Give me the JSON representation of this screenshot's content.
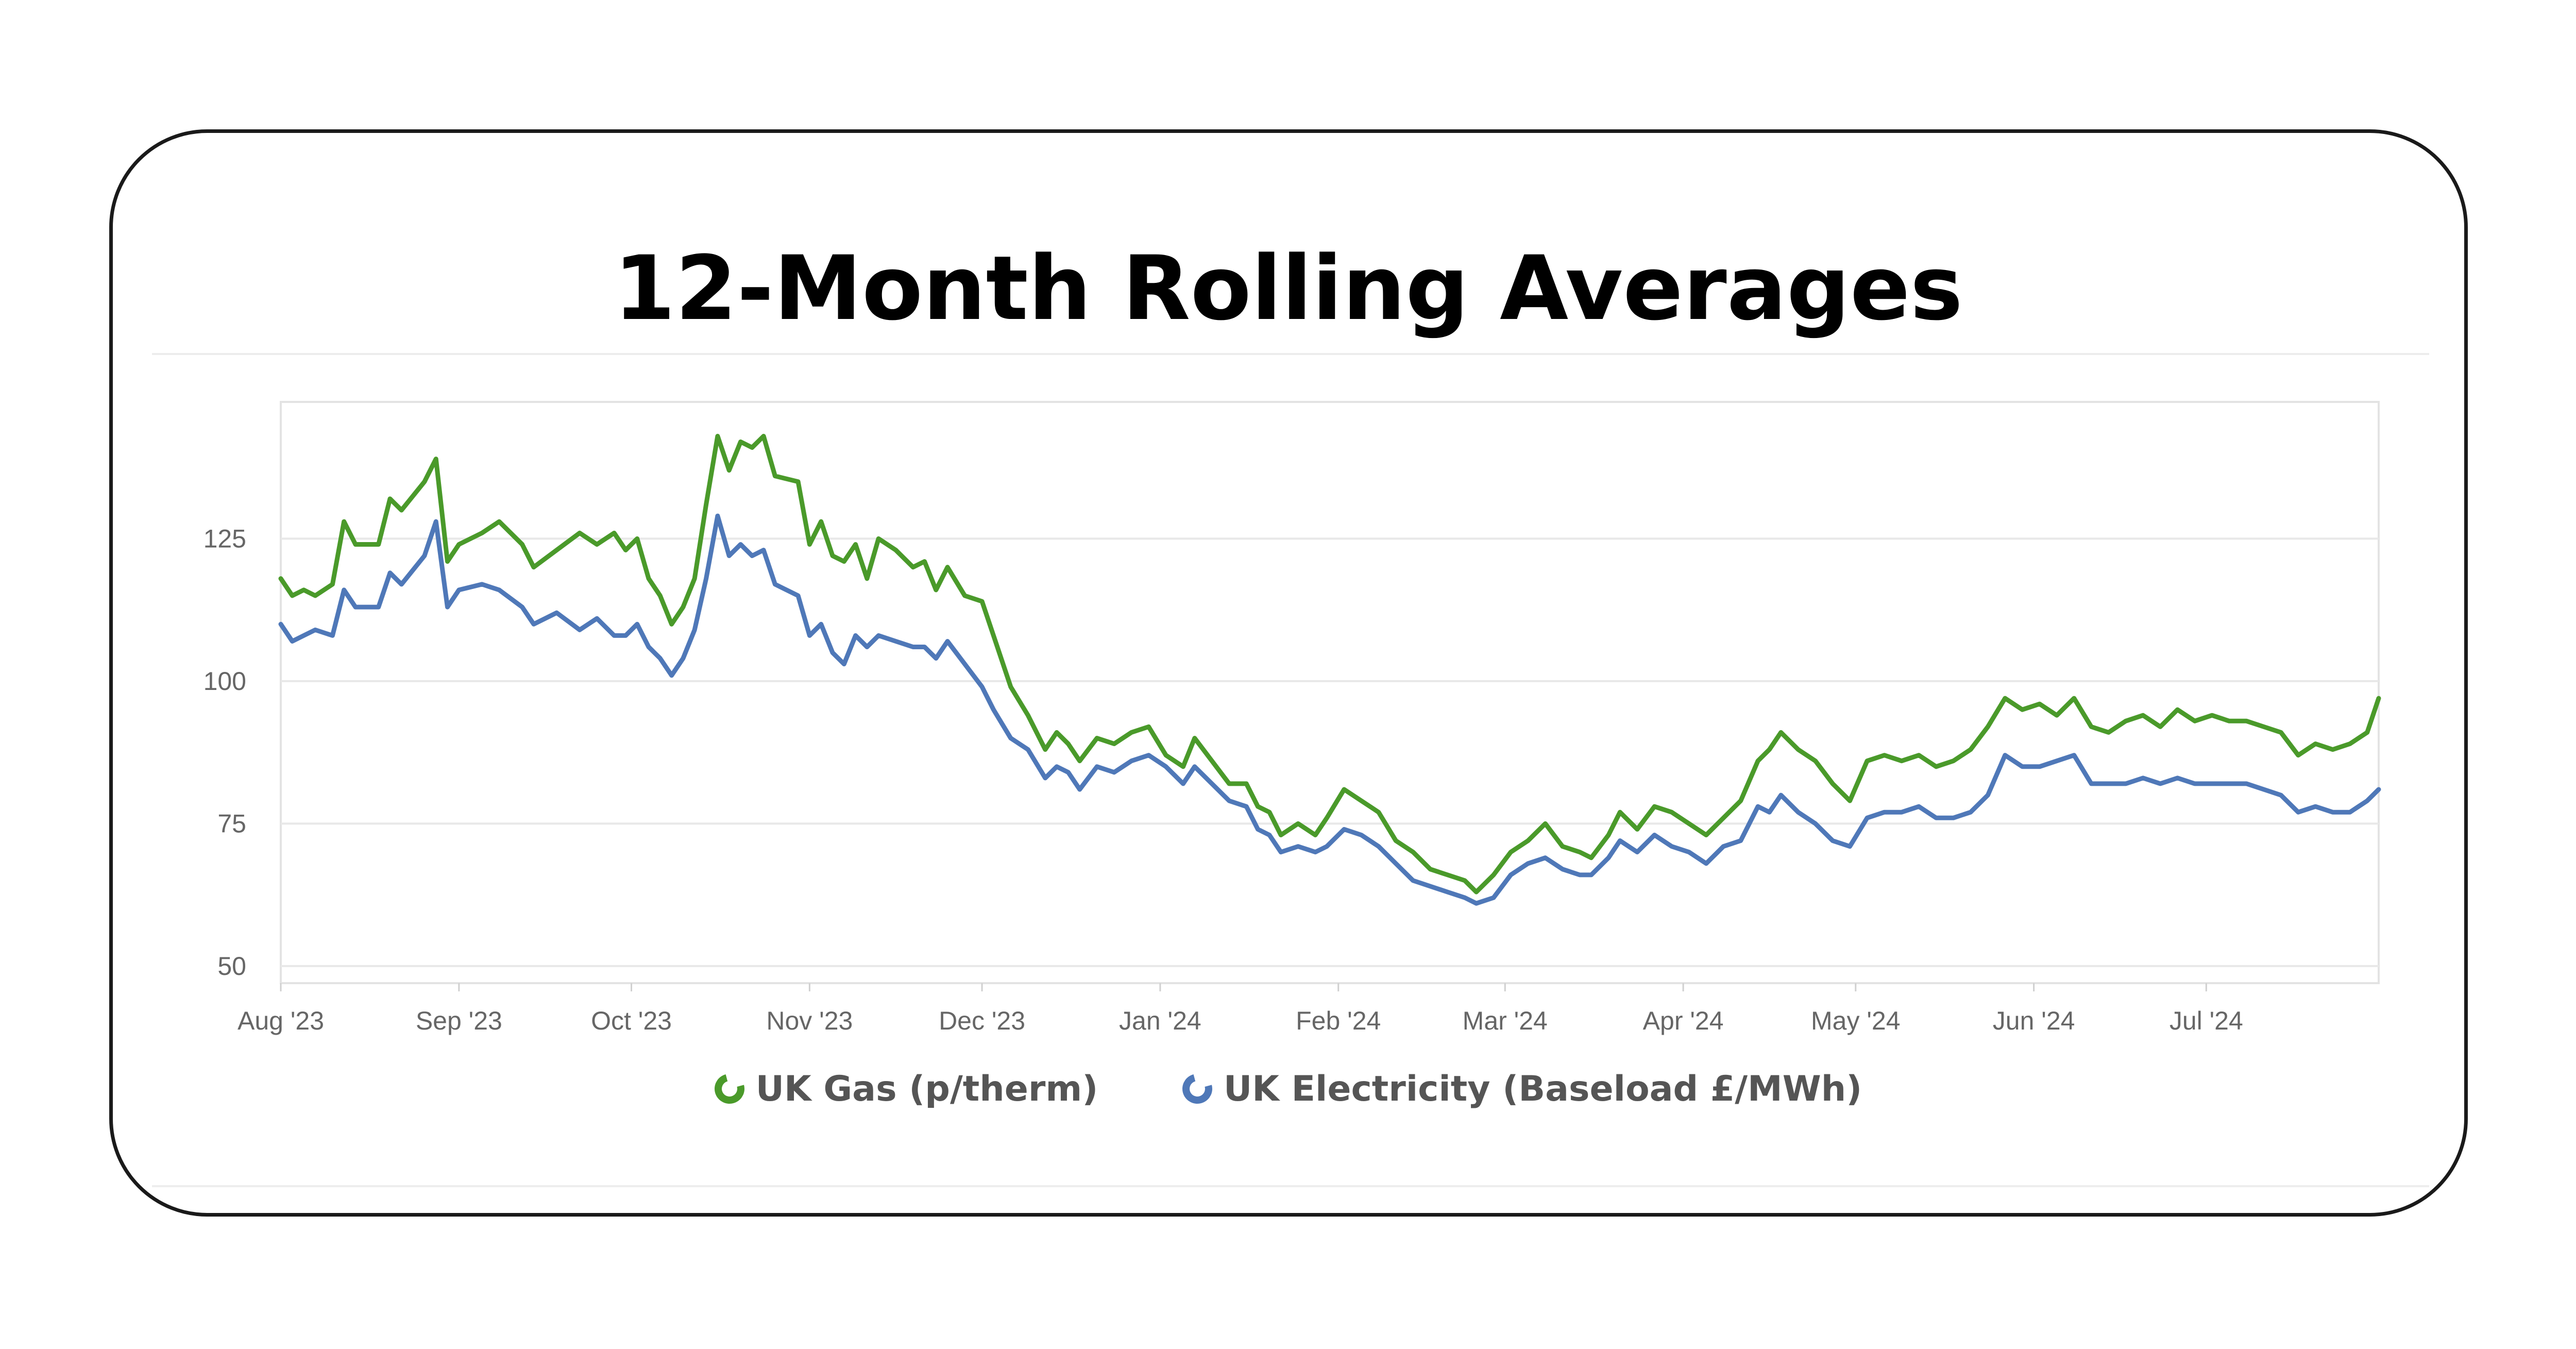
{
  "title": "12-Month Rolling Averages",
  "chart_data": {
    "type": "line",
    "title": "12-Month Rolling Averages",
    "xlabel": "",
    "ylabel": "",
    "ylim": [
      47,
      149
    ],
    "xlim": [
      "2023-08-01",
      "2024-07-31"
    ],
    "y_ticks": [
      "125",
      "100",
      "75",
      "50"
    ],
    "y_tick_values": [
      125,
      100,
      75,
      50
    ],
    "x_tick_labels": [
      "Aug '23",
      "Sep '23",
      "Oct '23",
      "Nov '23",
      "Dec '23",
      "Jan '24",
      "Feb '24",
      "Mar '24",
      "Apr '24",
      "May '24",
      "Jun '24",
      "Jul '24"
    ],
    "x_tick_dates": [
      "2023-08-01",
      "2023-09-01",
      "2023-10-01",
      "2023-11-01",
      "2023-12-01",
      "2024-01-01",
      "2024-02-01",
      "2024-03-01",
      "2024-04-01",
      "2024-05-01",
      "2024-06-01",
      "2024-07-01"
    ],
    "grid": "horizontal",
    "legend_position": "bottom",
    "series": [
      {
        "name": "UK Gas (p/therm)",
        "color": "#4a9a2a",
        "points": [
          [
            "2023-08-01",
            118
          ],
          [
            "2023-08-03",
            115
          ],
          [
            "2023-08-05",
            116
          ],
          [
            "2023-08-07",
            115
          ],
          [
            "2023-08-10",
            117
          ],
          [
            "2023-08-12",
            128
          ],
          [
            "2023-08-14",
            124
          ],
          [
            "2023-08-18",
            124
          ],
          [
            "2023-08-20",
            132
          ],
          [
            "2023-08-22",
            130
          ],
          [
            "2023-08-26",
            135
          ],
          [
            "2023-08-28",
            139
          ],
          [
            "2023-08-30",
            121
          ],
          [
            "2023-09-01",
            124
          ],
          [
            "2023-09-05",
            126
          ],
          [
            "2023-09-08",
            128
          ],
          [
            "2023-09-12",
            124
          ],
          [
            "2023-09-14",
            120
          ],
          [
            "2023-09-18",
            123
          ],
          [
            "2023-09-22",
            126
          ],
          [
            "2023-09-25",
            124
          ],
          [
            "2023-09-28",
            126
          ],
          [
            "2023-09-30",
            123
          ],
          [
            "2023-10-02",
            125
          ],
          [
            "2023-10-04",
            118
          ],
          [
            "2023-10-06",
            115
          ],
          [
            "2023-10-08",
            110
          ],
          [
            "2023-10-10",
            113
          ],
          [
            "2023-10-12",
            118
          ],
          [
            "2023-10-14",
            131
          ],
          [
            "2023-10-16",
            143
          ],
          [
            "2023-10-18",
            137
          ],
          [
            "2023-10-20",
            142
          ],
          [
            "2023-10-22",
            141
          ],
          [
            "2023-10-24",
            143
          ],
          [
            "2023-10-26",
            136
          ],
          [
            "2023-10-30",
            135
          ],
          [
            "2023-11-01",
            124
          ],
          [
            "2023-11-03",
            128
          ],
          [
            "2023-11-05",
            122
          ],
          [
            "2023-11-07",
            121
          ],
          [
            "2023-11-09",
            124
          ],
          [
            "2023-11-11",
            118
          ],
          [
            "2023-11-13",
            125
          ],
          [
            "2023-11-16",
            123
          ],
          [
            "2023-11-19",
            120
          ],
          [
            "2023-11-21",
            121
          ],
          [
            "2023-11-23",
            116
          ],
          [
            "2023-11-25",
            120
          ],
          [
            "2023-11-28",
            115
          ],
          [
            "2023-12-01",
            114
          ],
          [
            "2023-12-03",
            108
          ],
          [
            "2023-12-06",
            99
          ],
          [
            "2023-12-09",
            94
          ],
          [
            "2023-12-12",
            88
          ],
          [
            "2023-12-14",
            91
          ],
          [
            "2023-12-16",
            89
          ],
          [
            "2023-12-18",
            86
          ],
          [
            "2023-12-21",
            90
          ],
          [
            "2023-12-24",
            89
          ],
          [
            "2023-12-27",
            91
          ],
          [
            "2023-12-30",
            92
          ],
          [
            "2024-01-02",
            87
          ],
          [
            "2024-01-05",
            85
          ],
          [
            "2024-01-07",
            90
          ],
          [
            "2024-01-10",
            86
          ],
          [
            "2024-01-13",
            82
          ],
          [
            "2024-01-16",
            82
          ],
          [
            "2024-01-18",
            78
          ],
          [
            "2024-01-20",
            77
          ],
          [
            "2024-01-22",
            73
          ],
          [
            "2024-01-25",
            75
          ],
          [
            "2024-01-28",
            73
          ],
          [
            "2024-01-30",
            76
          ],
          [
            "2024-02-02",
            81
          ],
          [
            "2024-02-05",
            79
          ],
          [
            "2024-02-08",
            77
          ],
          [
            "2024-02-11",
            72
          ],
          [
            "2024-02-14",
            70
          ],
          [
            "2024-02-17",
            67
          ],
          [
            "2024-02-20",
            66
          ],
          [
            "2024-02-23",
            65
          ],
          [
            "2024-02-25",
            63
          ],
          [
            "2024-02-28",
            66
          ],
          [
            "2024-03-02",
            70
          ],
          [
            "2024-03-05",
            72
          ],
          [
            "2024-03-08",
            75
          ],
          [
            "2024-03-11",
            71
          ],
          [
            "2024-03-14",
            70
          ],
          [
            "2024-03-16",
            69
          ],
          [
            "2024-03-19",
            73
          ],
          [
            "2024-03-21",
            77
          ],
          [
            "2024-03-24",
            74
          ],
          [
            "2024-03-27",
            78
          ],
          [
            "2024-03-30",
            77
          ],
          [
            "2024-04-02",
            75
          ],
          [
            "2024-04-05",
            73
          ],
          [
            "2024-04-08",
            76
          ],
          [
            "2024-04-11",
            79
          ],
          [
            "2024-04-14",
            86
          ],
          [
            "2024-04-16",
            88
          ],
          [
            "2024-04-18",
            91
          ],
          [
            "2024-04-21",
            88
          ],
          [
            "2024-04-24",
            86
          ],
          [
            "2024-04-27",
            82
          ],
          [
            "2024-04-30",
            79
          ],
          [
            "2024-05-03",
            86
          ],
          [
            "2024-05-06",
            87
          ],
          [
            "2024-05-09",
            86
          ],
          [
            "2024-05-12",
            87
          ],
          [
            "2024-05-15",
            85
          ],
          [
            "2024-05-18",
            86
          ],
          [
            "2024-05-21",
            88
          ],
          [
            "2024-05-24",
            92
          ],
          [
            "2024-05-27",
            97
          ],
          [
            "2024-05-30",
            95
          ],
          [
            "2024-06-02",
            96
          ],
          [
            "2024-06-05",
            94
          ],
          [
            "2024-06-08",
            97
          ],
          [
            "2024-06-11",
            92
          ],
          [
            "2024-06-14",
            91
          ],
          [
            "2024-06-17",
            93
          ],
          [
            "2024-06-20",
            94
          ],
          [
            "2024-06-23",
            92
          ],
          [
            "2024-06-26",
            95
          ],
          [
            "2024-06-29",
            93
          ],
          [
            "2024-07-02",
            94
          ],
          [
            "2024-07-05",
            93
          ],
          [
            "2024-07-08",
            93
          ],
          [
            "2024-07-11",
            92
          ],
          [
            "2024-07-14",
            91
          ],
          [
            "2024-07-17",
            87
          ],
          [
            "2024-07-20",
            89
          ],
          [
            "2024-07-23",
            88
          ],
          [
            "2024-07-26",
            89
          ],
          [
            "2024-07-29",
            91
          ],
          [
            "2024-07-31",
            97
          ]
        ]
      },
      {
        "name": "UK Electricity (Baseload £/MWh)",
        "color": "#4f78b8",
        "points": [
          [
            "2023-08-01",
            110
          ],
          [
            "2023-08-03",
            107
          ],
          [
            "2023-08-05",
            108
          ],
          [
            "2023-08-07",
            109
          ],
          [
            "2023-08-10",
            108
          ],
          [
            "2023-08-12",
            116
          ],
          [
            "2023-08-14",
            113
          ],
          [
            "2023-08-18",
            113
          ],
          [
            "2023-08-20",
            119
          ],
          [
            "2023-08-22",
            117
          ],
          [
            "2023-08-26",
            122
          ],
          [
            "2023-08-28",
            128
          ],
          [
            "2023-08-30",
            113
          ],
          [
            "2023-09-01",
            116
          ],
          [
            "2023-09-05",
            117
          ],
          [
            "2023-09-08",
            116
          ],
          [
            "2023-09-12",
            113
          ],
          [
            "2023-09-14",
            110
          ],
          [
            "2023-09-18",
            112
          ],
          [
            "2023-09-22",
            109
          ],
          [
            "2023-09-25",
            111
          ],
          [
            "2023-09-28",
            108
          ],
          [
            "2023-09-30",
            108
          ],
          [
            "2023-10-02",
            110
          ],
          [
            "2023-10-04",
            106
          ],
          [
            "2023-10-06",
            104
          ],
          [
            "2023-10-08",
            101
          ],
          [
            "2023-10-10",
            104
          ],
          [
            "2023-10-12",
            109
          ],
          [
            "2023-10-14",
            118
          ],
          [
            "2023-10-16",
            129
          ],
          [
            "2023-10-18",
            122
          ],
          [
            "2023-10-20",
            124
          ],
          [
            "2023-10-22",
            122
          ],
          [
            "2023-10-24",
            123
          ],
          [
            "2023-10-26",
            117
          ],
          [
            "2023-10-30",
            115
          ],
          [
            "2023-11-01",
            108
          ],
          [
            "2023-11-03",
            110
          ],
          [
            "2023-11-05",
            105
          ],
          [
            "2023-11-07",
            103
          ],
          [
            "2023-11-09",
            108
          ],
          [
            "2023-11-11",
            106
          ],
          [
            "2023-11-13",
            108
          ],
          [
            "2023-11-16",
            107
          ],
          [
            "2023-11-19",
            106
          ],
          [
            "2023-11-21",
            106
          ],
          [
            "2023-11-23",
            104
          ],
          [
            "2023-11-25",
            107
          ],
          [
            "2023-11-28",
            103
          ],
          [
            "2023-12-01",
            99
          ],
          [
            "2023-12-03",
            95
          ],
          [
            "2023-12-06",
            90
          ],
          [
            "2023-12-09",
            88
          ],
          [
            "2023-12-12",
            83
          ],
          [
            "2023-12-14",
            85
          ],
          [
            "2023-12-16",
            84
          ],
          [
            "2023-12-18",
            81
          ],
          [
            "2023-12-21",
            85
          ],
          [
            "2023-12-24",
            84
          ],
          [
            "2023-12-27",
            86
          ],
          [
            "2023-12-30",
            87
          ],
          [
            "2024-01-02",
            85
          ],
          [
            "2024-01-05",
            82
          ],
          [
            "2024-01-07",
            85
          ],
          [
            "2024-01-10",
            82
          ],
          [
            "2024-01-13",
            79
          ],
          [
            "2024-01-16",
            78
          ],
          [
            "2024-01-18",
            74
          ],
          [
            "2024-01-20",
            73
          ],
          [
            "2024-01-22",
            70
          ],
          [
            "2024-01-25",
            71
          ],
          [
            "2024-01-28",
            70
          ],
          [
            "2024-01-30",
            71
          ],
          [
            "2024-02-02",
            74
          ],
          [
            "2024-02-05",
            73
          ],
          [
            "2024-02-08",
            71
          ],
          [
            "2024-02-11",
            68
          ],
          [
            "2024-02-14",
            65
          ],
          [
            "2024-02-17",
            64
          ],
          [
            "2024-02-20",
            63
          ],
          [
            "2024-02-23",
            62
          ],
          [
            "2024-02-25",
            61
          ],
          [
            "2024-02-28",
            62
          ],
          [
            "2024-03-02",
            66
          ],
          [
            "2024-03-05",
            68
          ],
          [
            "2024-03-08",
            69
          ],
          [
            "2024-03-11",
            67
          ],
          [
            "2024-03-14",
            66
          ],
          [
            "2024-03-16",
            66
          ],
          [
            "2024-03-19",
            69
          ],
          [
            "2024-03-21",
            72
          ],
          [
            "2024-03-24",
            70
          ],
          [
            "2024-03-27",
            73
          ],
          [
            "2024-03-30",
            71
          ],
          [
            "2024-04-02",
            70
          ],
          [
            "2024-04-05",
            68
          ],
          [
            "2024-04-08",
            71
          ],
          [
            "2024-04-11",
            72
          ],
          [
            "2024-04-14",
            78
          ],
          [
            "2024-04-16",
            77
          ],
          [
            "2024-04-18",
            80
          ],
          [
            "2024-04-21",
            77
          ],
          [
            "2024-04-24",
            75
          ],
          [
            "2024-04-27",
            72
          ],
          [
            "2024-04-30",
            71
          ],
          [
            "2024-05-03",
            76
          ],
          [
            "2024-05-06",
            77
          ],
          [
            "2024-05-09",
            77
          ],
          [
            "2024-05-12",
            78
          ],
          [
            "2024-05-15",
            76
          ],
          [
            "2024-05-18",
            76
          ],
          [
            "2024-05-21",
            77
          ],
          [
            "2024-05-24",
            80
          ],
          [
            "2024-05-27",
            87
          ],
          [
            "2024-05-30",
            85
          ],
          [
            "2024-06-02",
            85
          ],
          [
            "2024-06-05",
            86
          ],
          [
            "2024-06-08",
            87
          ],
          [
            "2024-06-11",
            82
          ],
          [
            "2024-06-14",
            82
          ],
          [
            "2024-06-17",
            82
          ],
          [
            "2024-06-20",
            83
          ],
          [
            "2024-06-23",
            82
          ],
          [
            "2024-06-26",
            83
          ],
          [
            "2024-06-29",
            82
          ],
          [
            "2024-07-02",
            82
          ],
          [
            "2024-07-05",
            82
          ],
          [
            "2024-07-08",
            82
          ],
          [
            "2024-07-11",
            81
          ],
          [
            "2024-07-14",
            80
          ],
          [
            "2024-07-17",
            77
          ],
          [
            "2024-07-20",
            78
          ],
          [
            "2024-07-23",
            77
          ],
          [
            "2024-07-26",
            77
          ],
          [
            "2024-07-29",
            79
          ],
          [
            "2024-07-31",
            81
          ]
        ]
      }
    ]
  }
}
